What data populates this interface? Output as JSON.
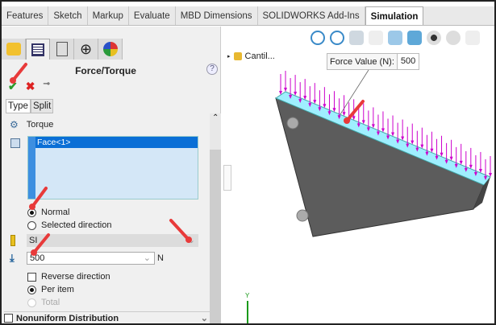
{
  "ribbon_tabs": [
    "Features",
    "Sketch",
    "Markup",
    "Evaluate",
    "MBD Dimensions",
    "SOLIDWORKS Add-Ins",
    "Simulation"
  ],
  "selected_tab": "Simulation",
  "panel": {
    "title": "Force/Torque",
    "help": "?",
    "ok_icon": "check-icon",
    "cancel_icon": "x-icon",
    "pin_icon": "pushpin-icon",
    "subtabs": [
      "Type",
      "Split"
    ],
    "torque_label": "Torque",
    "selection": "Face<1>",
    "direction_options": [
      {
        "label": "Normal",
        "selected": true
      },
      {
        "label": "Selected direction",
        "selected": false
      }
    ],
    "unit_system": "SI",
    "force_value": "500",
    "force_unit": "N",
    "reverse_direction": "Reverse direction",
    "distribution_options": [
      {
        "label": "Per item",
        "selected": true
      },
      {
        "label": "Total",
        "selected": false,
        "disabled": true
      }
    ],
    "nonuniform": "Nonuniform Distribution"
  },
  "tree": {
    "item": "Cantil..."
  },
  "callout": {
    "label": "Force Value (N):",
    "value": "500"
  },
  "colors": {
    "load_arrows": "#cc00cc",
    "face_highlight": "#9fefff",
    "part": "#5a5a5a",
    "annotation_arrows": "#e83a3a"
  }
}
